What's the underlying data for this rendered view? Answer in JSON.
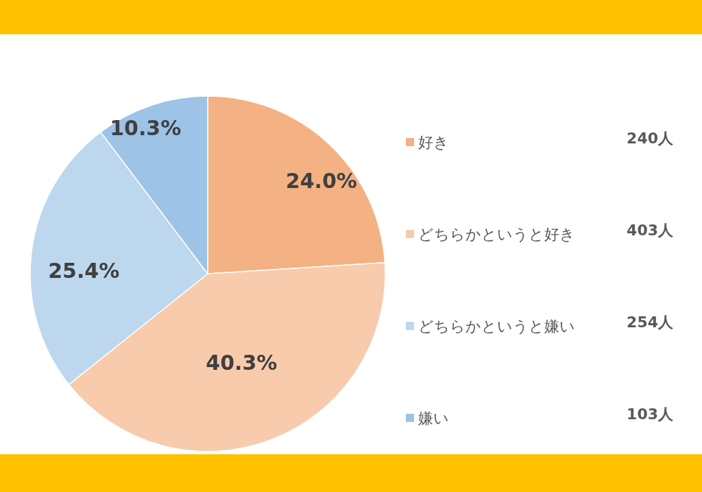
{
  "chart_data": {
    "type": "pie",
    "categories": [
      "好き",
      "どちらかというと好き",
      "どちらかというと嫌い",
      "嫌い"
    ],
    "values": [
      24.0,
      40.3,
      25.4,
      10.3
    ],
    "value_labels": [
      "24.0%",
      "40.3%",
      "25.4%",
      "10.3%"
    ],
    "colors": [
      "#f4b183",
      "#f8cbad",
      "#bdd7ee",
      "#9dc3e6"
    ],
    "annotations": [
      "240人",
      "403人",
      "254人",
      "103人"
    ],
    "legend": "right"
  }
}
